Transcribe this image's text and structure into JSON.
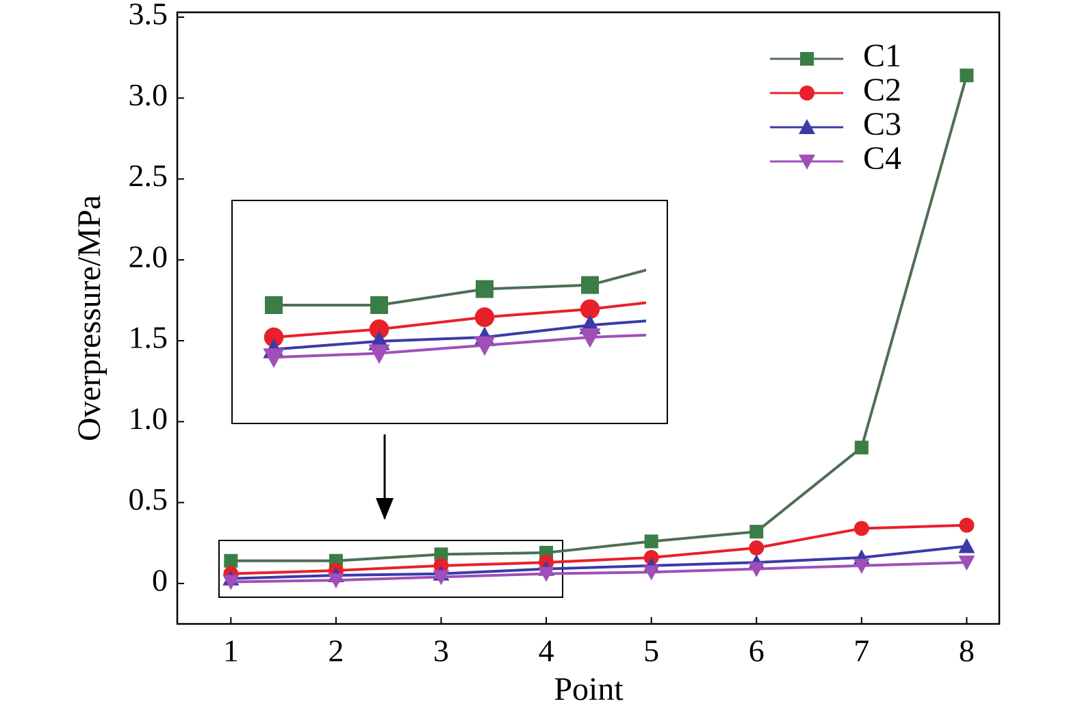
{
  "chart_data": {
    "type": "line",
    "xlabel": "Point",
    "ylabel": "Overpressure/MPa",
    "x": [
      1,
      2,
      3,
      4,
      5,
      6,
      7,
      8
    ],
    "series": [
      {
        "name": "C1",
        "color": "#3b7d46",
        "marker": "square",
        "values": [
          0.14,
          0.14,
          0.18,
          0.19,
          0.26,
          0.32,
          0.84,
          3.14
        ]
      },
      {
        "name": "C2",
        "color": "#e8202a",
        "marker": "circle",
        "values": [
          0.06,
          0.08,
          0.11,
          0.13,
          0.16,
          0.22,
          0.34,
          0.36
        ]
      },
      {
        "name": "C3",
        "color": "#3a3aa8",
        "marker": "triangle-up",
        "values": [
          0.03,
          0.05,
          0.06,
          0.09,
          0.11,
          0.13,
          0.16,
          0.23
        ]
      },
      {
        "name": "C4",
        "color": "#a04fb8",
        "marker": "triangle-down",
        "values": [
          0.01,
          0.02,
          0.04,
          0.06,
          0.07,
          0.09,
          0.11,
          0.13
        ]
      }
    ],
    "xlim": [
      0.49,
      8.31
    ],
    "ylim": [
      -0.25,
      3.53
    ],
    "xticks": [
      1,
      2,
      3,
      4,
      5,
      6,
      7,
      8
    ],
    "yticks": [
      0,
      0.5,
      {
        "value": 1,
        "label": "1.0"
      },
      1.5,
      {
        "value": 2,
        "label": "2.0"
      },
      2.5,
      {
        "value": 3,
        "label": "3.0"
      },
      3.5
    ],
    "legend": "upper right",
    "grid": false
  }
}
